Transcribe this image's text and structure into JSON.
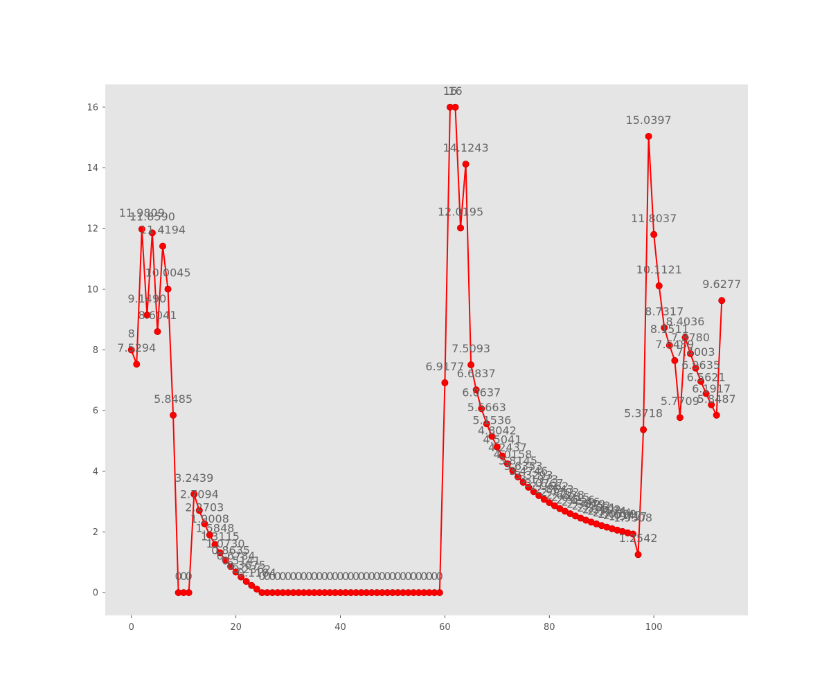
{
  "chart_data": {
    "type": "line",
    "title": "",
    "xlabel": "",
    "ylabel": "",
    "xlim": [
      -5,
      118
    ],
    "ylim": [
      -0.75,
      16.75
    ],
    "x_ticks": [
      0,
      20,
      40,
      60,
      80,
      100
    ],
    "y_ticks": [
      0,
      2,
      4,
      6,
      8,
      10,
      12,
      14,
      16
    ],
    "grid": false,
    "legend": "none",
    "line_color": "#ff0000",
    "marker_color": "#ff0000",
    "background_color": "#e5e5e5",
    "series": [
      {
        "values": [
          8,
          7.5294,
          11.9809,
          9.149,
          11.859,
          8.6041,
          11.4194,
          10.0045,
          5.8485,
          0,
          0,
          0,
          3.2439,
          2.7094,
          2.2703,
          1.9008,
          1.5848,
          1.3115,
          1.073,
          0.8635,
          0.6784,
          0.5141,
          0.3675,
          0.2362,
          0.1184,
          0,
          0,
          0,
          0,
          0,
          0,
          0,
          0,
          0,
          0,
          0,
          0,
          0,
          0,
          0,
          0,
          0,
          0,
          0,
          0,
          0,
          0,
          0,
          0,
          0,
          0,
          0,
          0,
          0,
          0,
          0,
          0,
          0,
          0,
          0,
          6.9177,
          16,
          16,
          12.0195,
          14.1243,
          7.5093,
          6.6837,
          6.0637,
          5.5663,
          5.1536,
          4.8042,
          4.5041,
          4.2437,
          4.0158,
          3.8145,
          3.6353,
          3.4746,
          3.3293,
          3.1973,
          3.0767,
          2.9662,
          2.8643,
          2.7702,
          2.6828,
          2.6015,
          2.5256,
          2.4546,
          2.3879,
          2.3252,
          2.2661,
          2.2102,
          2.1574,
          2.1074,
          2.0599,
          2.0147,
          1.9717,
          1.9308,
          1.2542,
          5.3718,
          15.0397,
          11.8037,
          10.1121,
          8.7317,
          8.1511,
          7.6489,
          5.7709,
          8.4036,
          7.878,
          7.4003,
          6.9635,
          6.5621,
          6.1917,
          5.8487,
          9.6277
        ],
        "labels": [
          "8",
          "7.5294",
          "11.9809",
          "9.1490",
          "11.8590",
          "8.6041",
          "11.4194",
          "10.0045",
          "5.8485",
          "0",
          "0",
          "0",
          "3.2439",
          "2.7094",
          "2.2703",
          "1.9008",
          "1.5848",
          "1.3115",
          "1.0730",
          "0.8635",
          "0.6784",
          "0.5141",
          "0.3675",
          "0.2362",
          "0.1184",
          "0",
          "0",
          "0",
          "0",
          "0",
          "0",
          "0",
          "0",
          "0",
          "0",
          "0",
          "0",
          "0",
          "0",
          "0",
          "0",
          "0",
          "0",
          "0",
          "0",
          "0",
          "0",
          "0",
          "0",
          "0",
          "0",
          "0",
          "0",
          "0",
          "0",
          "0",
          "0",
          "0",
          "0",
          "0",
          "6.9177",
          "16",
          "16",
          "12.0195",
          "14.1243",
          "7.5093",
          "6.6837",
          "6.0637",
          "5.5663",
          "5.1536",
          "4.8042",
          "4.5041",
          "4.2437",
          "4.0158",
          "3.8145",
          "3.6353",
          "3.4746",
          "3.3293",
          "3.1973",
          "3.0767",
          "2.9662",
          "2.8643",
          "2.7702",
          "2.6828",
          "2.6015",
          "2.5256",
          "2.4546",
          "2.3879",
          "2.3252",
          "2.2661",
          "2.2102",
          "2.1574",
          "2.1074",
          "2.0599",
          "2.0147",
          "1.9717",
          "1.9308",
          "1.2542",
          "5.3718",
          "15.0397",
          "11.8037",
          "10.1121",
          "8.7317",
          "8.1511",
          "7.6489",
          "5.7709",
          "8.4036",
          "7.8780",
          "7.4003",
          "6.9635",
          "6.5621",
          "6.1917",
          "5.8487",
          "9.6277"
        ]
      }
    ]
  }
}
